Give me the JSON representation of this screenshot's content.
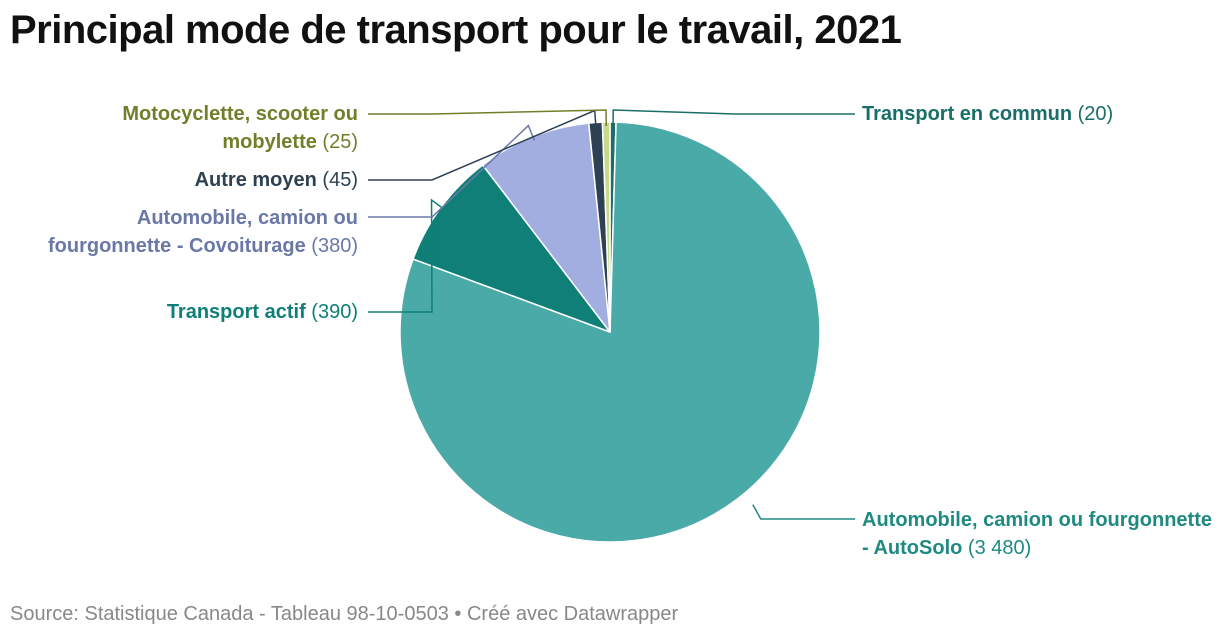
{
  "header": {
    "title": "Principal mode de transport pour le travail, 2021"
  },
  "footer": {
    "source": "Source: Statistique Canada - Tableau 98-10-0503",
    "separator": "•",
    "credit": "Créé avec Datawrapper"
  },
  "chart_data": {
    "type": "pie",
    "title": "Principal mode de transport pour le travail, 2021",
    "slices": [
      {
        "name": "Transport en commun",
        "value": 20,
        "display": "(20)",
        "color": "#1f6b6b",
        "label_color": "#1a6e68"
      },
      {
        "name": "Automobile, camion ou fourgonnette - AutoSolo",
        "value": 3480,
        "display": "(3 480)",
        "color": "#4aaaa7",
        "label_color": "#1f8a82"
      },
      {
        "name": "Transport actif",
        "value": 390,
        "display": "(390)",
        "color": "#0f7f78",
        "label_color": "#0f7f78"
      },
      {
        "name": "Automobile, camion ou fourgonnette - Covoiturage",
        "value": 380,
        "display": "(380)",
        "color": "#a3aee0",
        "label_color": "#6a78a8"
      },
      {
        "name": "Autre moyen",
        "value": 45,
        "display": "(45)",
        "color": "#2e4152",
        "label_color": "#2e4152"
      },
      {
        "name": "Motocyclette, scooter ou mobylette",
        "value": 25,
        "display": "(25)",
        "color": "#c9d98a",
        "label_color": "#6f7f2a"
      }
    ]
  }
}
